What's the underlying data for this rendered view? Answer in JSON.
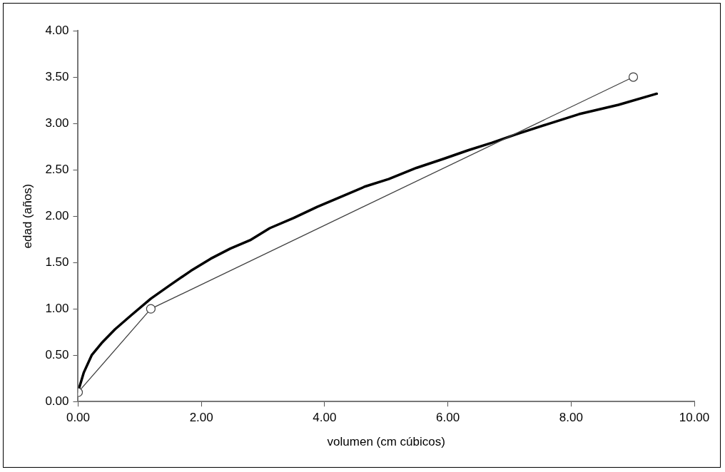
{
  "chart_data": {
    "type": "line",
    "xlabel": "volumen (cm cúbicos)",
    "ylabel": "edad (años)",
    "xlim": [
      0,
      10
    ],
    "xticks": [
      {
        "value": 0,
        "label": "0.00"
      },
      {
        "value": 2,
        "label": "2.00"
      },
      {
        "value": 4,
        "label": "4.00"
      },
      {
        "value": 6,
        "label": "6.00"
      },
      {
        "value": 8,
        "label": "8.00"
      },
      {
        "value": 10,
        "label": "10.00"
      }
    ],
    "ylim": [
      0,
      4
    ],
    "yticks": [
      {
        "value": 0,
        "label": "0.00"
      },
      {
        "value": 0.5,
        "label": "0.50"
      },
      {
        "value": 1,
        "label": "1.00"
      },
      {
        "value": 1.5,
        "label": "1.50"
      },
      {
        "value": 2,
        "label": "2.00"
      },
      {
        "value": 2.5,
        "label": "2.50"
      },
      {
        "value": 3,
        "label": "3.00"
      },
      {
        "value": 3.5,
        "label": "3.50"
      },
      {
        "value": 4,
        "label": "4.00"
      }
    ],
    "grid": false,
    "legend": false,
    "series": [
      {
        "color": "#000000",
        "marker": "none",
        "x": [
          0,
          0.09,
          0.22,
          0.38,
          0.6,
          0.86,
          1.18,
          1.5,
          1.83,
          2.15,
          2.47,
          2.79,
          3.11,
          3.5,
          3.88,
          4.27,
          4.66,
          5.04,
          5.49,
          5.94,
          6.33,
          6.71,
          7.1,
          7.61,
          8.13,
          8.77,
          9.39
        ],
        "values": [
          0.11,
          0.31,
          0.5,
          0.63,
          0.78,
          0.93,
          1.11,
          1.26,
          1.41,
          1.54,
          1.65,
          1.74,
          1.87,
          1.98,
          2.1,
          2.21,
          2.32,
          2.4,
          2.52,
          2.62,
          2.71,
          2.79,
          2.88,
          2.99,
          3.1,
          3.2,
          3.32
        ]
      },
      {
        "color": "#404040",
        "marker": "circle",
        "x": [
          0,
          1.18,
          9.01
        ],
        "values": [
          0.1,
          1.0,
          3.5
        ]
      }
    ]
  }
}
